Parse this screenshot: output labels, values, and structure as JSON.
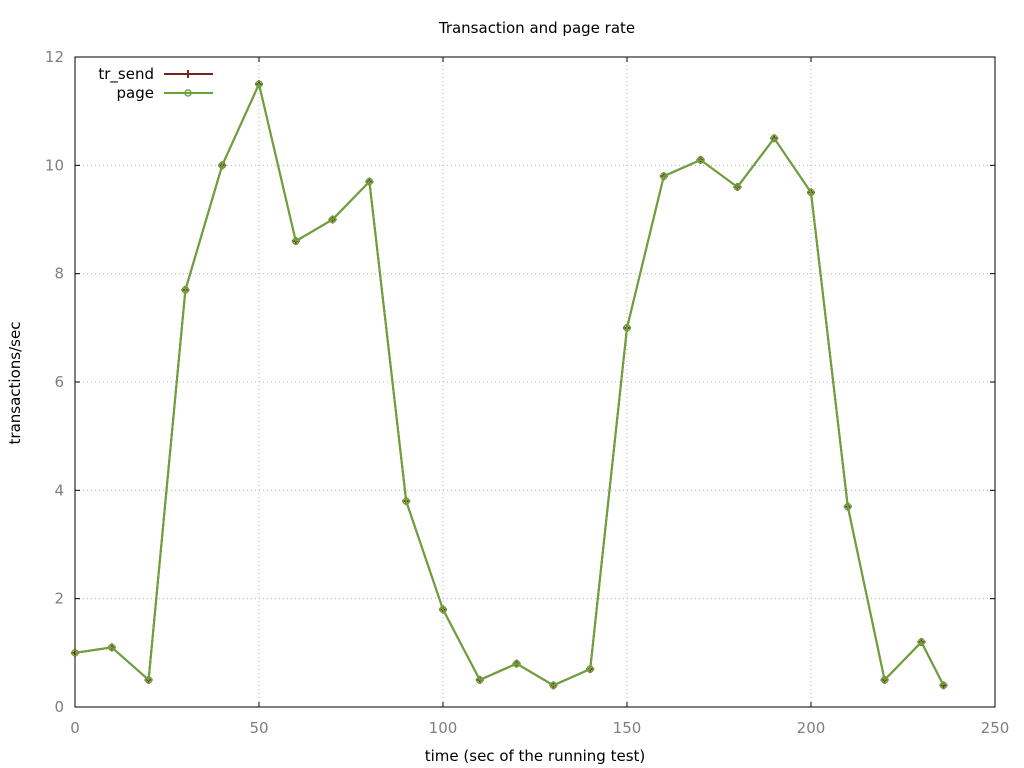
{
  "colors": {
    "tr_send": "#7a1f1f",
    "page": "#6aa33a",
    "tick_text": "#7f7f7f",
    "grid": "#b0b0b0"
  },
  "chart_data": {
    "type": "line",
    "title": "Transaction and page rate",
    "xlabel": "time (sec of the running test)",
    "ylabel": "transactions/sec",
    "xlim": [
      0,
      250
    ],
    "ylim": [
      0,
      12
    ],
    "xticks": [
      "0",
      "50",
      "100",
      "150",
      "200",
      "250"
    ],
    "yticks": [
      "0",
      "2",
      "4",
      "6",
      "8",
      "10",
      "12"
    ],
    "grid": true,
    "legend_position": "top-left",
    "x": [
      0,
      10,
      20,
      30,
      40,
      50,
      60,
      70,
      80,
      90,
      100,
      110,
      120,
      130,
      140,
      150,
      160,
      170,
      180,
      190,
      200,
      210,
      220,
      230,
      236
    ],
    "series": [
      {
        "name": "tr_send",
        "marker": "plus",
        "values": [
          1.0,
          1.1,
          0.5,
          7.7,
          10.0,
          11.5,
          8.6,
          9.0,
          9.7,
          3.8,
          1.8,
          0.5,
          0.8,
          0.4,
          0.7,
          7.0,
          9.8,
          10.1,
          9.6,
          10.5,
          9.5,
          3.7,
          0.5,
          1.2,
          0.4
        ]
      },
      {
        "name": "page",
        "marker": "circle",
        "values": [
          1.0,
          1.1,
          0.5,
          7.7,
          10.0,
          11.5,
          8.6,
          9.0,
          9.7,
          3.8,
          1.8,
          0.5,
          0.8,
          0.4,
          0.7,
          7.0,
          9.8,
          10.1,
          9.6,
          10.5,
          9.5,
          3.7,
          0.5,
          1.2,
          0.4
        ]
      }
    ]
  }
}
